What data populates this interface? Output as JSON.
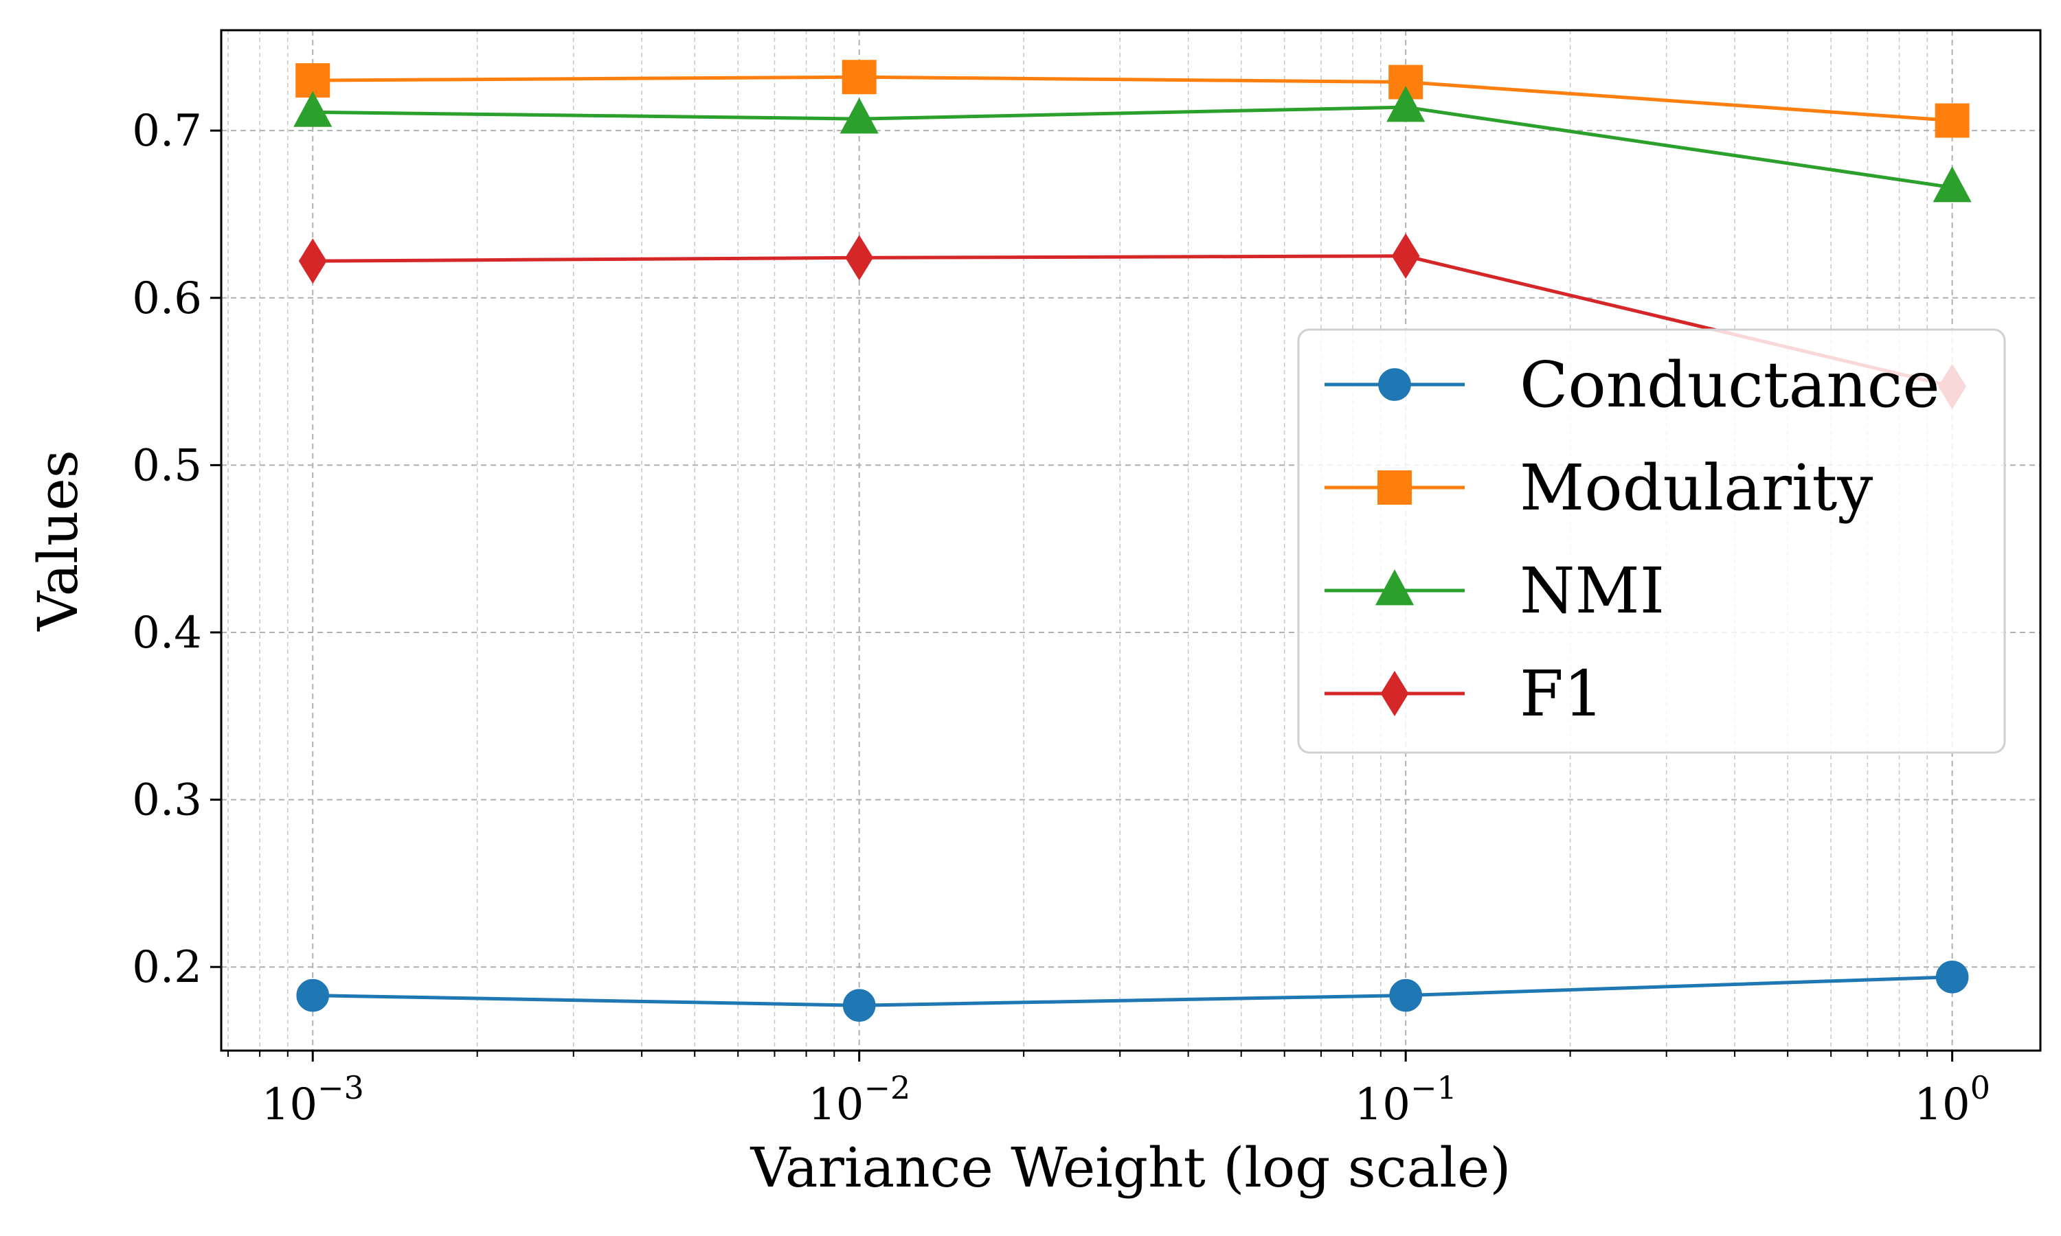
{
  "chart_data": {
    "type": "line",
    "title": "",
    "xlabel": "Variance Weight (log scale)",
    "ylabel": "Values",
    "xscale": "log",
    "xlim": [
      0.00068,
      1.45
    ],
    "ylim": [
      0.15,
      0.76
    ],
    "grid": true,
    "legend_position": "center-right",
    "x": [
      0.001,
      0.01,
      0.1,
      1
    ],
    "x_ticks": [
      {
        "value": 0.001,
        "base": "10",
        "exp": "−3"
      },
      {
        "value": 0.01,
        "base": "10",
        "exp": "−2"
      },
      {
        "value": 0.1,
        "base": "10",
        "exp": "−1"
      },
      {
        "value": 1,
        "base": "10",
        "exp": "0"
      }
    ],
    "y_ticks": [
      {
        "value": 0.2,
        "label": "0.2"
      },
      {
        "value": 0.3,
        "label": "0.3"
      },
      {
        "value": 0.4,
        "label": "0.4"
      },
      {
        "value": 0.5,
        "label": "0.5"
      },
      {
        "value": 0.6,
        "label": "0.6"
      },
      {
        "value": 0.7,
        "label": "0.7"
      }
    ],
    "series": [
      {
        "name": "Conductance",
        "color": "#1f77b4",
        "marker": "circle",
        "values": [
          0.183,
          0.177,
          0.183,
          0.194
        ]
      },
      {
        "name": "Modularity",
        "color": "#ff7f0e",
        "marker": "square",
        "values": [
          0.73,
          0.732,
          0.729,
          0.706
        ]
      },
      {
        "name": "NMI",
        "color": "#2ca02c",
        "marker": "triangle",
        "values": [
          0.711,
          0.707,
          0.714,
          0.666
        ]
      },
      {
        "name": "F1",
        "color": "#d62728",
        "marker": "diamond",
        "values": [
          0.622,
          0.624,
          0.625,
          0.547
        ]
      }
    ]
  }
}
